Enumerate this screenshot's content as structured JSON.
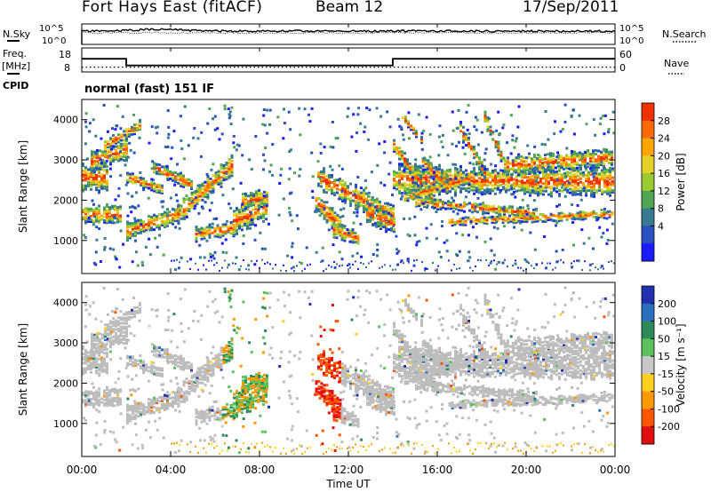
{
  "header": {
    "title": "Fort Hays East (fitACF)",
    "beam": "Beam 12",
    "date": "17/Sep/2011"
  },
  "top_panels": {
    "nsky_label": "N.Sky",
    "nsearch_label": "N.Search",
    "noise_ticks": [
      "10^5",
      "10^0"
    ],
    "freq_label": "Freq.",
    "freq_unit": "[MHz]",
    "freq_ticks": [
      "18",
      "8"
    ],
    "nave_label": "Nave",
    "nave_ticks": [
      "60",
      "0"
    ],
    "cpid_label": "CPID",
    "cpid_value": "normal (fast) 151 IF"
  },
  "power_panel": {
    "ylabel": "Slant Range [km]",
    "cbar_label": "Power [dB]",
    "cbar_ticks": [
      "28",
      "24",
      "20",
      "16",
      "12",
      "8",
      "4"
    ],
    "cbar_colors": [
      "#f03200",
      "#ff6a00",
      "#ffa500",
      "#e6d02a",
      "#9cca32",
      "#4ea552",
      "#3a7a90",
      "#2a50c0",
      "#1a1aff"
    ]
  },
  "velocity_panel": {
    "ylabel": "Slant Range [km]",
    "cbar_label": "Velocity [m s⁻¹]",
    "cbar_ticks": [
      "200",
      "100",
      "50",
      "15",
      "-15",
      "-50",
      "-100",
      "-200"
    ],
    "cbar_colors": [
      "#2030b0",
      "#2a6fc0",
      "#2e8a5a",
      "#5cc25c",
      "#c8c8c8",
      "#ffd020",
      "#ff9900",
      "#ff5500",
      "#e01010"
    ]
  },
  "x_axis": {
    "label": "Time UT",
    "ticks": [
      "00:00",
      "04:00",
      "08:00",
      "12:00",
      "16:00",
      "20:00",
      "00:00"
    ]
  },
  "colors": {
    "ground_scatter": "#bdbdbd"
  },
  "chart_data": [
    {
      "type": "line",
      "name": "noise",
      "x": [
        0,
        24
      ],
      "ylabels": [
        "10^5",
        "10^0"
      ],
      "xlim": [
        0,
        24
      ]
    },
    {
      "type": "line",
      "name": "frequency_and_nave",
      "series": [
        {
          "name": "Freq.",
          "x": [
            0,
            2,
            2,
            14,
            14,
            24
          ],
          "values": [
            13.5,
            13.5,
            10.7,
            10.7,
            13.5,
            13.5
          ]
        },
        {
          "name": "Nave",
          "x": [
            0,
            24
          ],
          "values": [
            10,
            10
          ]
        }
      ],
      "ylim": [
        8,
        18
      ],
      "xlim": [
        0,
        24
      ]
    },
    {
      "type": "heatmap",
      "name": "power",
      "xlabel": "Time UT",
      "ylabel": "Slant Range [km]",
      "xlim": [
        0,
        24
      ],
      "ylim": [
        180,
        4500
      ],
      "yticks": [
        1000,
        2000,
        3000,
        4000
      ],
      "clabel": "Power [dB]",
      "crange": [
        0,
        30
      ]
    },
    {
      "type": "heatmap",
      "name": "velocity",
      "xlabel": "Time UT",
      "ylabel": "Slant Range [km]",
      "xlim": [
        0,
        24
      ],
      "ylim": [
        180,
        4500
      ],
      "yticks": [
        1000,
        2000,
        3000,
        4000
      ],
      "clabel": "Velocity [m s⁻¹]",
      "crange": [
        -200,
        200
      ]
    }
  ]
}
